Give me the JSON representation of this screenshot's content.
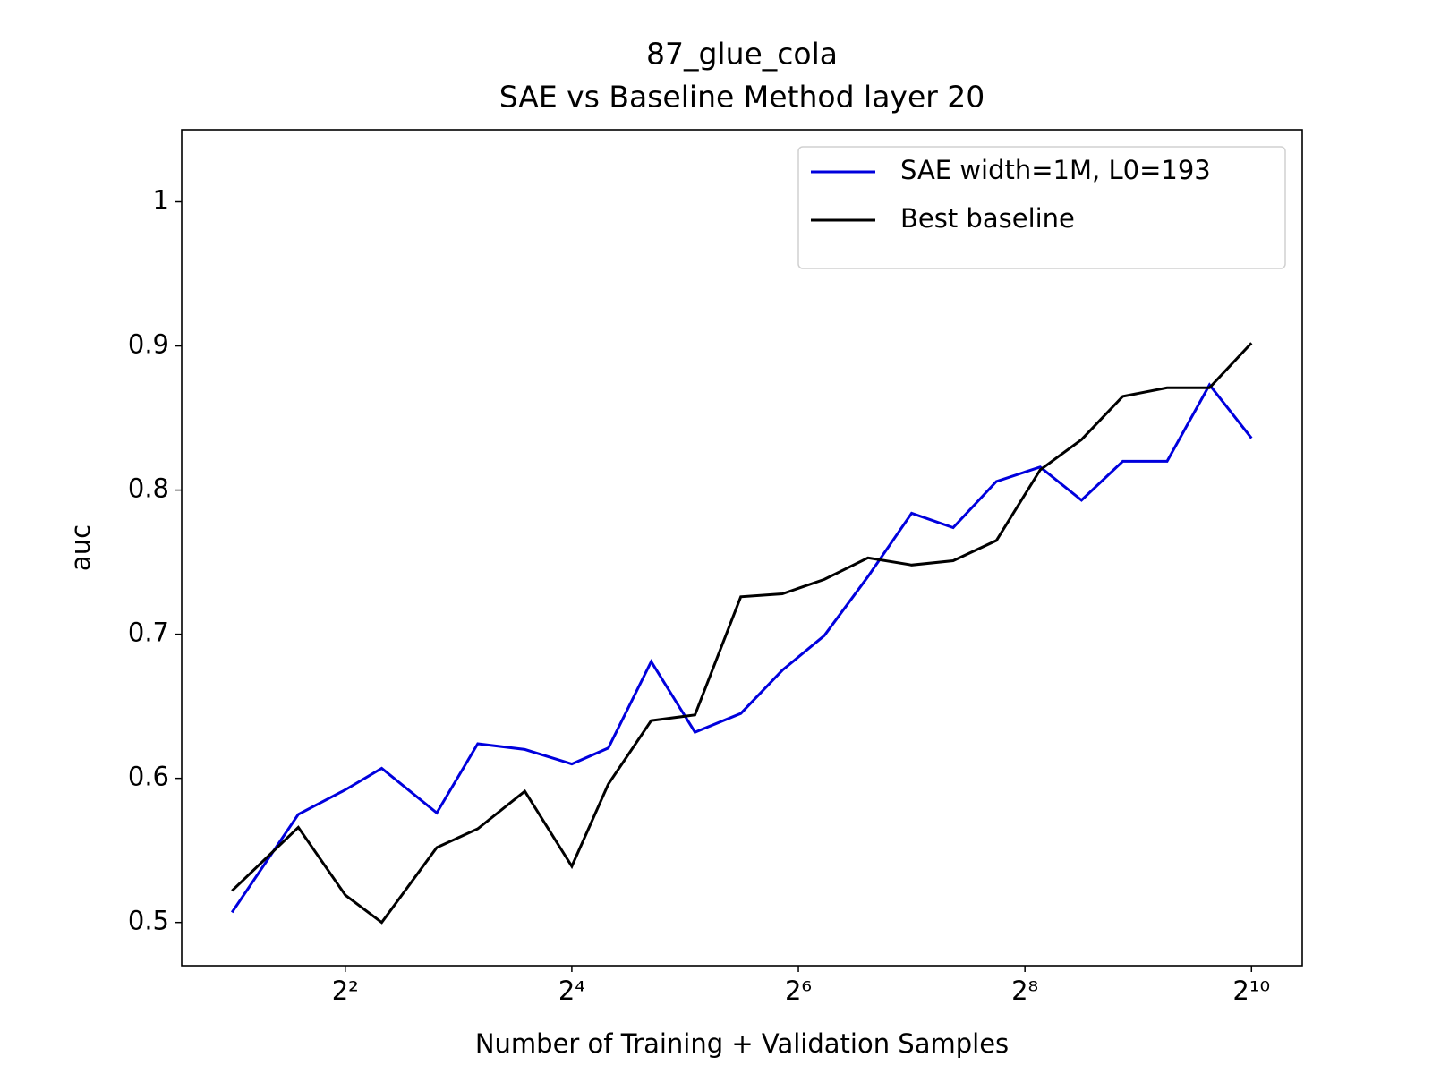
{
  "chart_data": {
    "type": "line",
    "title": "87_glue_cola",
    "subtitle": "SAE vs Baseline Method layer 20",
    "x_label": "Number of Training + Validation Samples",
    "y_label": "auc",
    "xscale": "log",
    "xbase": 2,
    "x": [
      2,
      3,
      4,
      5,
      7,
      9,
      12,
      16,
      20,
      26,
      34,
      45,
      58,
      75,
      98,
      128,
      165,
      215,
      281,
      362,
      466,
      611,
      792,
      1024
    ],
    "series": [
      {
        "name": "SAE width=1M, L0=193",
        "color": "#0000dd",
        "values": [
          0.507,
          0.575,
          0.592,
          0.607,
          0.576,
          0.624,
          0.62,
          0.61,
          0.621,
          0.681,
          0.632,
          0.645,
          0.675,
          0.699,
          0.74,
          0.784,
          0.774,
          0.806,
          0.816,
          0.793,
          0.82,
          0.82,
          0.873,
          0.836
        ]
      },
      {
        "name": "Best baseline",
        "color": "#000000",
        "values": [
          0.522,
          0.566,
          0.519,
          0.5,
          0.552,
          0.565,
          0.591,
          0.539,
          0.596,
          0.64,
          0.644,
          0.726,
          0.728,
          0.738,
          0.753,
          0.748,
          0.751,
          0.765,
          0.814,
          0.835,
          0.865,
          0.871,
          0.871,
          0.902
        ]
      }
    ],
    "xlim": [
      1.47,
      1397
    ],
    "xticks": [
      {
        "value": 4,
        "label": "2²"
      },
      {
        "value": 16,
        "label": "2⁴"
      },
      {
        "value": 64,
        "label": "2⁶"
      },
      {
        "value": 256,
        "label": "2⁸"
      },
      {
        "value": 1024,
        "label": "2¹⁰"
      }
    ],
    "ylim": [
      0.47,
      1.05
    ],
    "yticks": [
      0.5,
      0.6,
      0.7,
      0.8,
      0.9,
      1.0
    ],
    "grid": false,
    "legend": "upper right"
  }
}
